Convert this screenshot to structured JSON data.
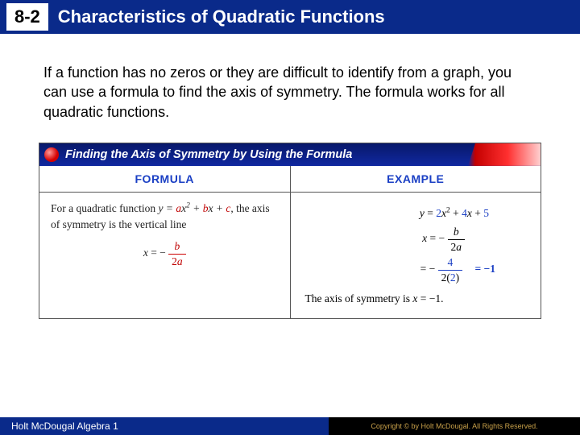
{
  "header": {
    "section_number": "8-2",
    "title": "Characteristics of Quadratic Functions"
  },
  "intro": "If a function has no zeros or they are difficult to identify from a graph, you can use a formula to find the axis of symmetry. The formula works for all quadratic functions.",
  "box": {
    "title": "Finding the Axis of Symmetry by Using the Formula",
    "formula_header": "FORMULA",
    "example_header": "EXAMPLE",
    "formula_text_1": "For a quadratic function ",
    "formula_eq_general": "y = ax² + bx + c",
    "formula_text_2": ", the axis of symmetry is the vertical line",
    "formula_x_eq": "x = −",
    "formula_frac_num": "b",
    "formula_frac_den": "2a",
    "example_eq": "y = 2x² + 4x + 5",
    "example_line2_lhs": "x = −",
    "example_line2_num": "b",
    "example_line2_den": "2a",
    "example_line3_lhs": "= −",
    "example_line3_num": "4",
    "example_line3_den": "2(2)",
    "example_result": "= −1",
    "axis_statement_pre": "The axis of symmetry is ",
    "axis_statement_eq": "x = −1",
    "axis_statement_post": "."
  },
  "footer": {
    "left": "Holt McDougal Algebra 1",
    "right": "Copyright © by Holt McDougal. All Rights Reserved."
  },
  "colors": {
    "header_bg": "#0a2a8a",
    "accent_red": "#c00000",
    "accent_blue": "#1a3fc4"
  }
}
